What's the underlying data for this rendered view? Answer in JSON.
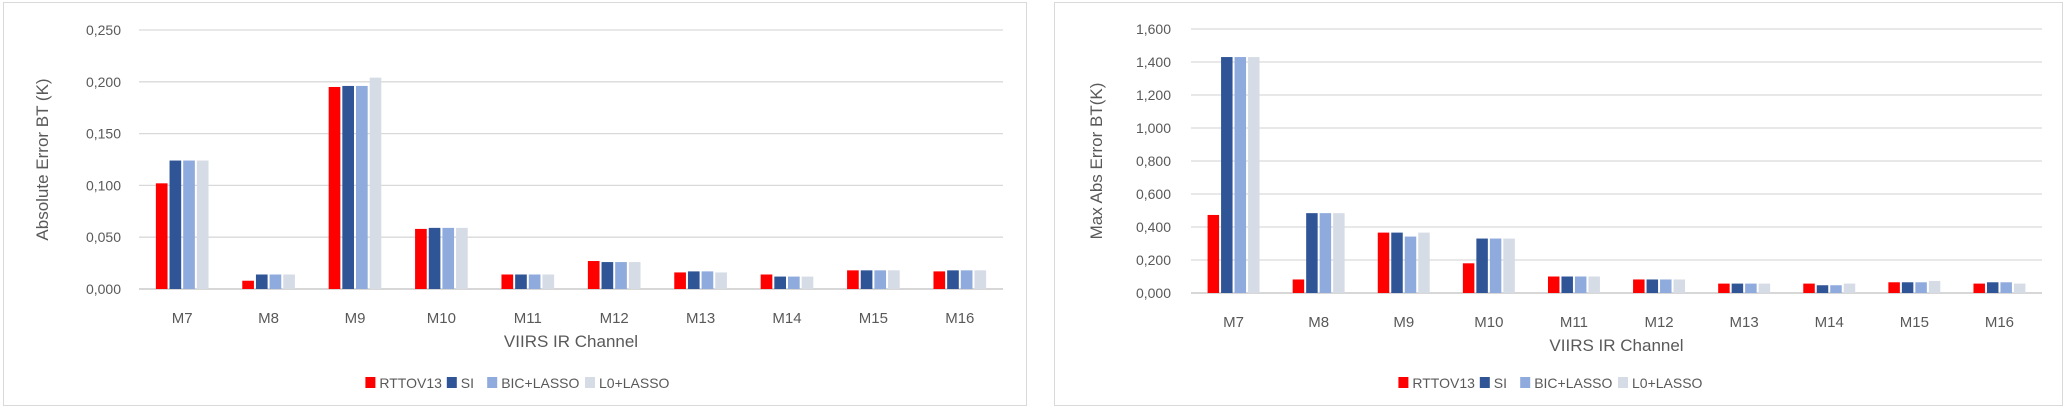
{
  "chart_data": [
    {
      "type": "bar",
      "title": "",
      "xlabel": "VIIRS IR Channel",
      "ylabel": "Absolute Error BT (K)",
      "ylim": [
        0,
        0.25
      ],
      "yticks": [
        "0,000",
        "0,050",
        "0,100",
        "0,150",
        "0,200",
        "0,250"
      ],
      "grid": true,
      "legend": "bottom",
      "categories": [
        "M7",
        "M8",
        "M9",
        "M10",
        "M11",
        "M12",
        "M13",
        "M14",
        "M15",
        "M16"
      ],
      "series": [
        {
          "name": "RTTOV13",
          "color": "#ff0000",
          "values": [
            0.102,
            0.008,
            0.195,
            0.058,
            0.014,
            0.027,
            0.016,
            0.014,
            0.018,
            0.017
          ]
        },
        {
          "name": "SI",
          "color": "#2f5597",
          "values": [
            0.124,
            0.014,
            0.196,
            0.059,
            0.014,
            0.026,
            0.017,
            0.012,
            0.018,
            0.018
          ]
        },
        {
          "name": "BIC+LASSO",
          "color": "#8faadc",
          "values": [
            0.124,
            0.014,
            0.196,
            0.059,
            0.014,
            0.026,
            0.017,
            0.012,
            0.018,
            0.018
          ]
        },
        {
          "name": "L0+LASSO",
          "color": "#d6dce5",
          "values": [
            0.124,
            0.014,
            0.204,
            0.059,
            0.014,
            0.026,
            0.016,
            0.012,
            0.018,
            0.018
          ]
        }
      ]
    },
    {
      "type": "bar",
      "title": "",
      "xlabel": "VIIRS IR Channel",
      "ylabel": "Max Abs Error BT(K)",
      "ylim": [
        0,
        1.6
      ],
      "yticks": [
        "0,000",
        "0,200",
        "0,400",
        "0,600",
        "0,800",
        "1,000",
        "1,200",
        "1,400",
        "1,600"
      ],
      "grid": true,
      "legend": "bottom",
      "categories": [
        "M7",
        "M8",
        "M9",
        "M10",
        "M11",
        "M12",
        "M13",
        "M14",
        "M15",
        "M16"
      ],
      "series": [
        {
          "name": "RTTOV13",
          "color": "#ff0000",
          "values": [
            0.473,
            0.082,
            0.366,
            0.18,
            0.1,
            0.082,
            0.057,
            0.057,
            0.065,
            0.057
          ]
        },
        {
          "name": "SI",
          "color": "#2f5597",
          "values": [
            1.43,
            0.484,
            0.366,
            0.33,
            0.1,
            0.082,
            0.057,
            0.047,
            0.065,
            0.065
          ]
        },
        {
          "name": "BIC+LASSO",
          "color": "#8faadc",
          "values": [
            1.43,
            0.484,
            0.342,
            0.33,
            0.1,
            0.082,
            0.057,
            0.047,
            0.065,
            0.065
          ]
        },
        {
          "name": "L0+LASSO",
          "color": "#d6dce5",
          "values": [
            1.43,
            0.484,
            0.366,
            0.33,
            0.1,
            0.082,
            0.057,
            0.057,
            0.073,
            0.057
          ]
        }
      ]
    }
  ]
}
